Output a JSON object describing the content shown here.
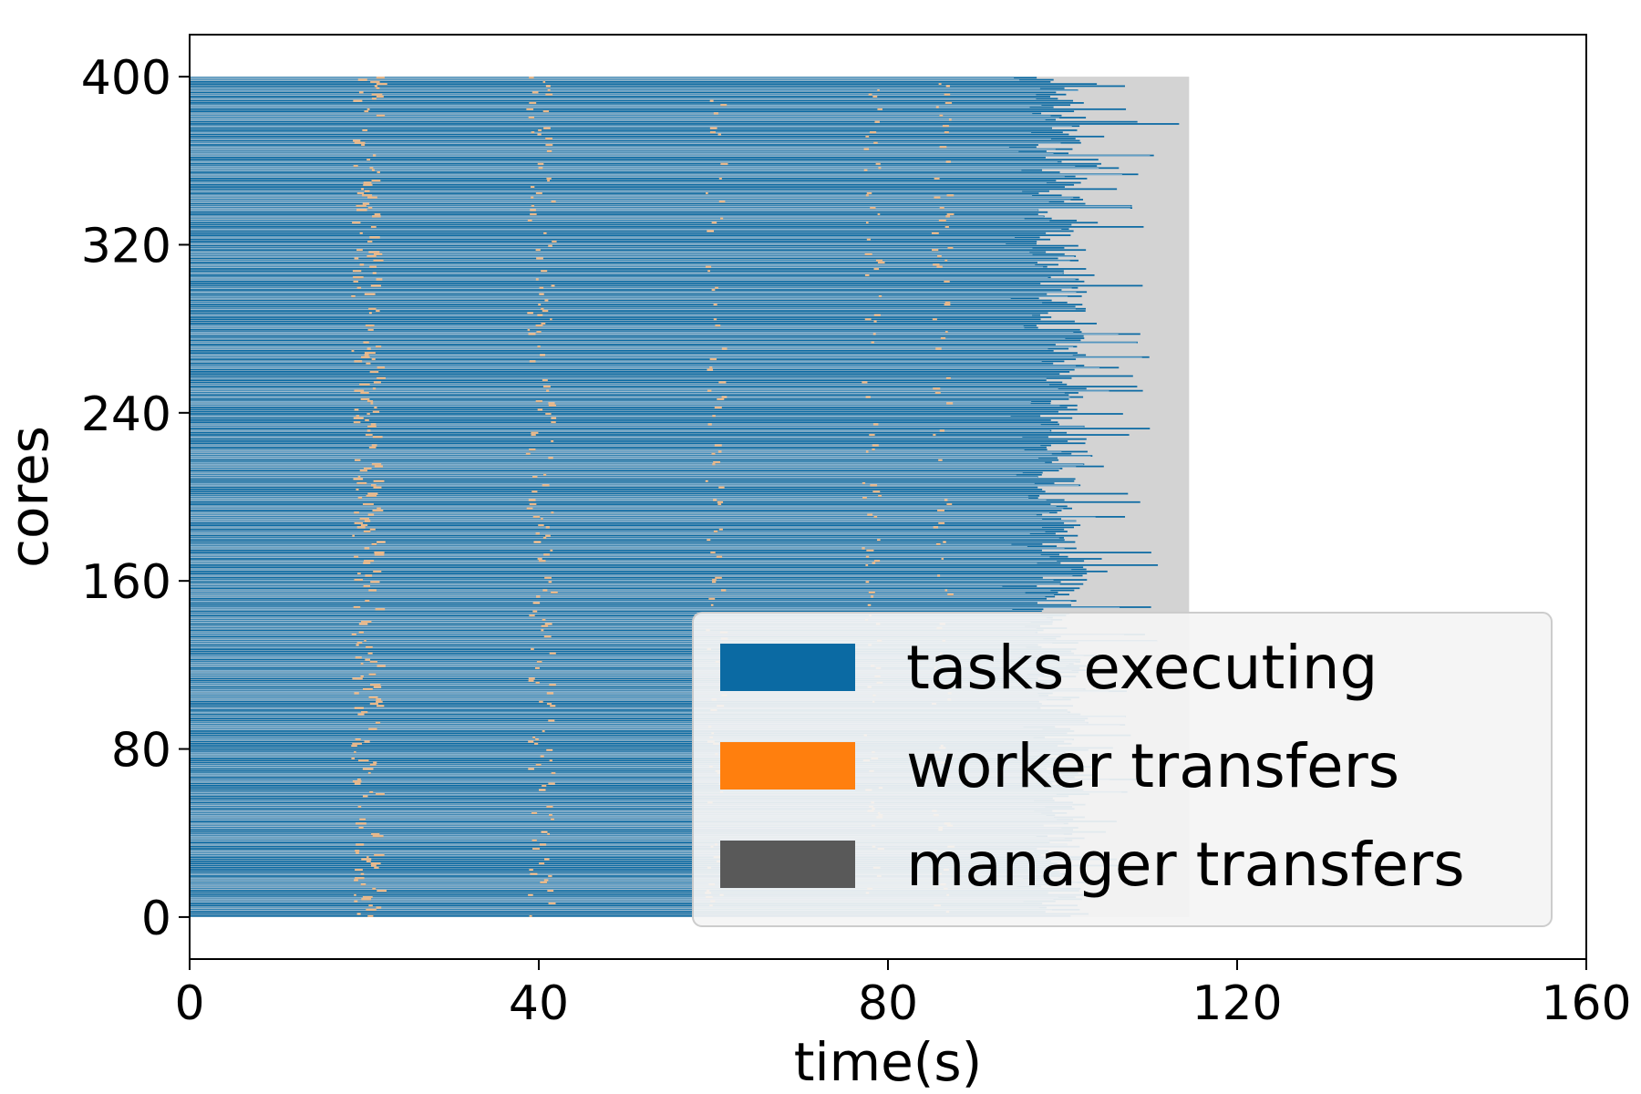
{
  "chart_data": {
    "type": "gantt-timeline",
    "xlabel": "time(s)",
    "ylabel": "cores",
    "xlim": [
      0,
      160
    ],
    "ylim": [
      -20,
      420
    ],
    "xticks": [
      0,
      40,
      80,
      120,
      160
    ],
    "yticks": [
      0,
      80,
      160,
      240,
      320,
      400
    ],
    "xtick_labels": [
      "0",
      "40",
      "80",
      "120",
      "160"
    ],
    "ytick_labels": [
      "0",
      "80",
      "160",
      "240",
      "320",
      "400"
    ],
    "cores": 400,
    "background_end_time": 114.5,
    "task_end_time_range": [
      97,
      114
    ],
    "worker_transfer_bands": [
      20,
      40,
      60,
      78,
      86
    ],
    "colors": {
      "tasks_executing": "#0b6aa3",
      "worker_transfers": "#ff7f0e",
      "worker_transfers_visible": "#e8b88a",
      "manager_transfers": "#595959",
      "idle_background": "#d3d3d3"
    },
    "legend": {
      "position": "lower right",
      "entries": [
        {
          "label": "tasks executing",
          "color": "#0b6aa3"
        },
        {
          "label": "worker transfers",
          "color": "#ff7f0e"
        },
        {
          "label": "manager transfers",
          "color": "#595959"
        }
      ]
    },
    "grid": false
  }
}
